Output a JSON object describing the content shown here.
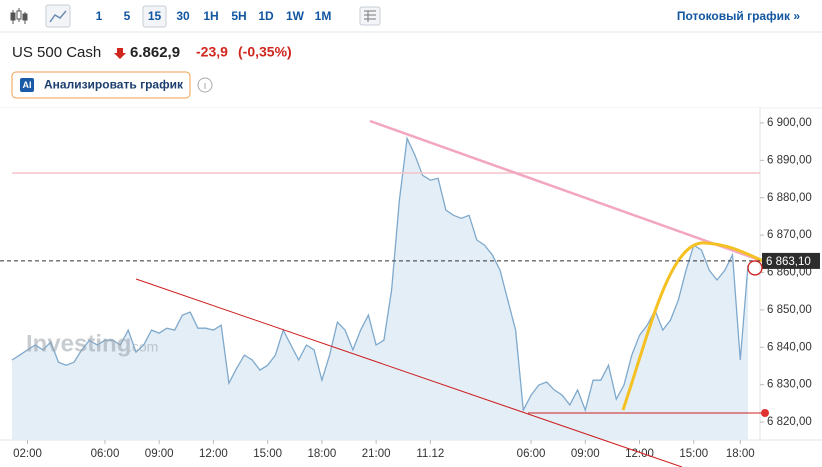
{
  "toolbar": {
    "intervals": [
      "1",
      "5",
      "15",
      "30",
      "1H",
      "5H",
      "1D",
      "1W",
      "1M"
    ],
    "active_interval": "15",
    "streaming_link": "Потоковый график »"
  },
  "header": {
    "symbol": "US 500 Cash",
    "price": "6.862,9",
    "change": "-23,9",
    "change_pct": "(-0,35%)"
  },
  "analyze_button": {
    "badge": "AI",
    "label": "Анализировать график"
  },
  "chart_data": {
    "type": "area",
    "watermark": "Investing",
    "watermark_suffix": ".com",
    "values": [
      6836.6,
      6837.9,
      6839.3,
      6840.6,
      6839.3,
      6841.4,
      6836.0,
      6835.2,
      6836.0,
      6839.3,
      6841.9,
      6840.6,
      6841.9,
      6841.9,
      6840.6,
      6844.6,
      6838.7,
      6840.6,
      6844.6,
      6843.8,
      6845.1,
      6844.6,
      6848.6,
      6849.4,
      6845.1,
      6845.1,
      6844.6,
      6845.9,
      6830.4,
      6834.4,
      6837.9,
      6836.6,
      6833.9,
      6835.2,
      6837.9,
      6844.6,
      6840.6,
      6836.6,
      6840.6,
      6839.3,
      6831.2,
      6837.9,
      6846.7,
      6844.6,
      6839.3,
      6844.6,
      6848.6,
      6840.6,
      6841.9,
      6855.3,
      6879.4,
      6895.9,
      6891.4,
      6886.0,
      6884.7,
      6885.2,
      6876.7,
      6875.3,
      6874.5,
      6875.3,
      6868.7,
      6867.3,
      6864.7,
      6860.6,
      6852.6,
      6844.6,
      6823.2,
      6827.2,
      6829.9,
      6830.7,
      6828.6,
      6827.2,
      6824.6,
      6828.6,
      6823.2,
      6831.2,
      6831.2,
      6835.2,
      6826.1,
      6829.9,
      6837.9,
      6843.2,
      6845.9,
      6849.9,
      6844.6,
      6847.3,
      6852.6,
      6860.6,
      6867.3,
      6866.0,
      6860.6,
      6858.0,
      6860.6,
      6864.7,
      6836.6,
      6862.0
    ],
    "color": "#7ea9cc",
    "fill": "#e4eef7",
    "xlim": [
      0,
      95
    ],
    "xticks": [
      {
        "value": 2,
        "label": "02:00"
      },
      {
        "value": 12,
        "label": "06:00"
      },
      {
        "value": 19,
        "label": "09:00"
      },
      {
        "value": 26,
        "label": "12:00"
      },
      {
        "value": 33,
        "label": "15:00"
      },
      {
        "value": 40,
        "label": "18:00"
      },
      {
        "value": 47,
        "label": "21:00"
      },
      {
        "value": 54,
        "label": "11.12"
      },
      {
        "value": 67,
        "label": "06:00"
      },
      {
        "value": 74,
        "label": "09:00"
      },
      {
        "value": 81,
        "label": "12:00"
      },
      {
        "value": 88,
        "label": "15:00"
      },
      {
        "value": 94,
        "label": "18:00"
      }
    ],
    "ylim": [
      6815.2,
      6904
    ],
    "yticks": [
      {
        "value": 6820,
        "label": "6 820,00"
      },
      {
        "value": 6830,
        "label": "6 830,00"
      },
      {
        "value": 6840,
        "label": "6 840,00"
      },
      {
        "value": 6850,
        "label": "6 850,00"
      },
      {
        "value": 6860,
        "label": "6 860,00"
      },
      {
        "value": 6870,
        "label": "6 870,00"
      },
      {
        "value": 6880,
        "label": "6 880,00"
      },
      {
        "value": 6890,
        "label": "6 890,00"
      },
      {
        "value": 6900,
        "label": "6 900,00"
      }
    ],
    "last_price": {
      "value": 6863.1,
      "label": "6 863,10"
    }
  }
}
